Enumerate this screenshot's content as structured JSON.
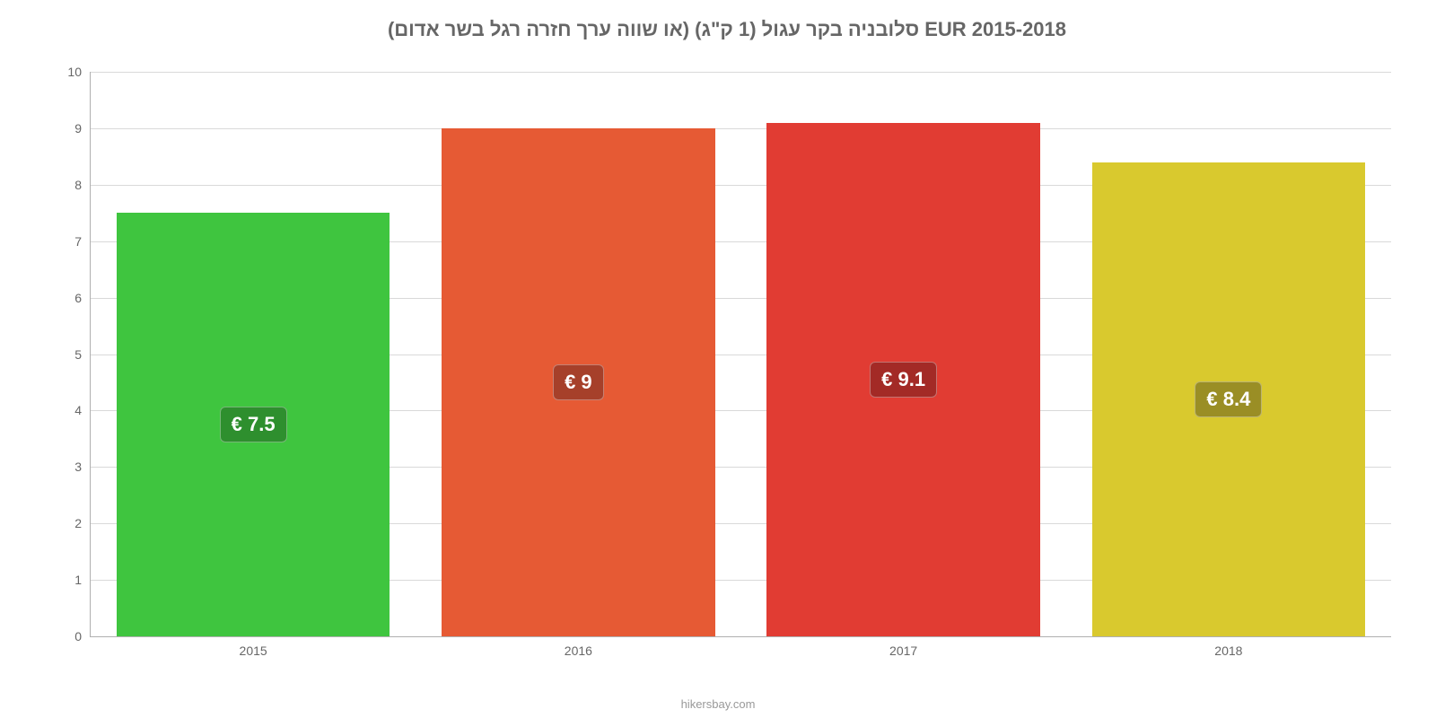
{
  "chart": {
    "type": "bar",
    "title": "סלובניה בקר עגול (1 ק\"ג) (או שווה ערך חזרה רגל בשר אדום) EUR 2015-2018",
    "title_fontsize": 22,
    "title_color": "#666666",
    "categories": [
      "2015",
      "2016",
      "2017",
      "2018"
    ],
    "values": [
      7.5,
      9.0,
      9.1,
      8.4
    ],
    "value_labels": [
      "€ 7.5",
      "€ 9",
      "€ 9.1",
      "€ 8.4"
    ],
    "bar_colors": [
      "#3fc53f",
      "#e65a34",
      "#e13c33",
      "#d9c92e"
    ],
    "badge_bg_colors": [
      "#2e8f2e",
      "#a6402a",
      "#a32a26",
      "#9a8e25"
    ],
    "badge_fontsize": 22,
    "ylim": [
      0,
      10
    ],
    "yticks": [
      0,
      1,
      2,
      3,
      4,
      5,
      6,
      7,
      8,
      9,
      10
    ],
    "ytick_labels": [
      "0",
      "1",
      "2",
      "3",
      "4",
      "5",
      "6",
      "7",
      "8",
      "9",
      "10"
    ],
    "axis_label_fontsize": 14,
    "axis_label_color": "#666666",
    "grid_color": "#d9d9d9",
    "background_color": "#ffffff",
    "plot_background": "#ffffff",
    "bar_width_pct": 84,
    "attribution": "hikersbay.com",
    "attribution_color": "#999999"
  }
}
